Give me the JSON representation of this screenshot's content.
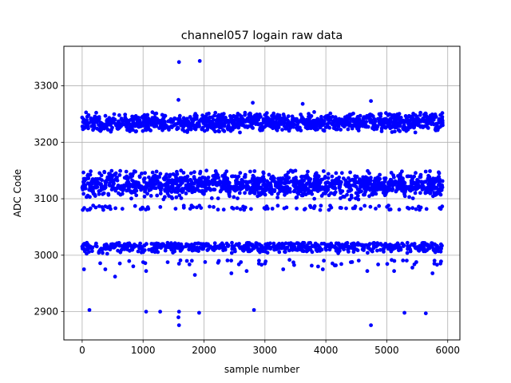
{
  "chart_data": {
    "type": "scatter",
    "title": "channel057 logain raw data",
    "xlabel": "sample number",
    "ylabel": "ADC Code",
    "xlim": [
      -300,
      6200
    ],
    "ylim": [
      2850,
      3370
    ],
    "xticks": [
      0,
      1000,
      2000,
      3000,
      4000,
      5000,
      6000
    ],
    "yticks": [
      2900,
      3000,
      3100,
      3200,
      3300
    ],
    "grid": true,
    "legend": "none",
    "marker_color": "#0000ff",
    "sample_count": 5920,
    "bands": [
      {
        "center": 3235,
        "low": 3215,
        "high": 3258,
        "share": 0.36
      },
      {
        "center": 3125,
        "low": 3088,
        "high": 3150,
        "share": 0.42
      },
      {
        "center": 3015,
        "low": 2992,
        "high": 3022,
        "share": 0.22
      }
    ],
    "outliers": [
      {
        "x": 1590,
        "y": 3342
      },
      {
        "x": 1930,
        "y": 3344
      },
      {
        "x": 1580,
        "y": 3275
      },
      {
        "x": 2800,
        "y": 3270
      },
      {
        "x": 3620,
        "y": 3268
      },
      {
        "x": 4740,
        "y": 3273
      },
      {
        "x": 120,
        "y": 2903
      },
      {
        "x": 1050,
        "y": 2900
      },
      {
        "x": 1280,
        "y": 2900
      },
      {
        "x": 1590,
        "y": 2900
      },
      {
        "x": 1580,
        "y": 2890
      },
      {
        "x": 1590,
        "y": 2876
      },
      {
        "x": 1920,
        "y": 2898
      },
      {
        "x": 2820,
        "y": 2903
      },
      {
        "x": 4740,
        "y": 2876
      },
      {
        "x": 5290,
        "y": 2898
      },
      {
        "x": 5640,
        "y": 2897
      },
      {
        "x": 30,
        "y": 2975
      },
      {
        "x": 380,
        "y": 2975
      },
      {
        "x": 540,
        "y": 2962
      },
      {
        "x": 1050,
        "y": 2972
      },
      {
        "x": 1590,
        "y": 2985
      },
      {
        "x": 1850,
        "y": 2965
      },
      {
        "x": 2450,
        "y": 2968
      },
      {
        "x": 2700,
        "y": 2972
      },
      {
        "x": 3300,
        "y": 2975
      },
      {
        "x": 4680,
        "y": 2972
      },
      {
        "x": 5120,
        "y": 2972
      },
      {
        "x": 5750,
        "y": 2968
      },
      {
        "x": 5420,
        "y": 2978
      },
      {
        "x": 3950,
        "y": 2975
      }
    ]
  }
}
